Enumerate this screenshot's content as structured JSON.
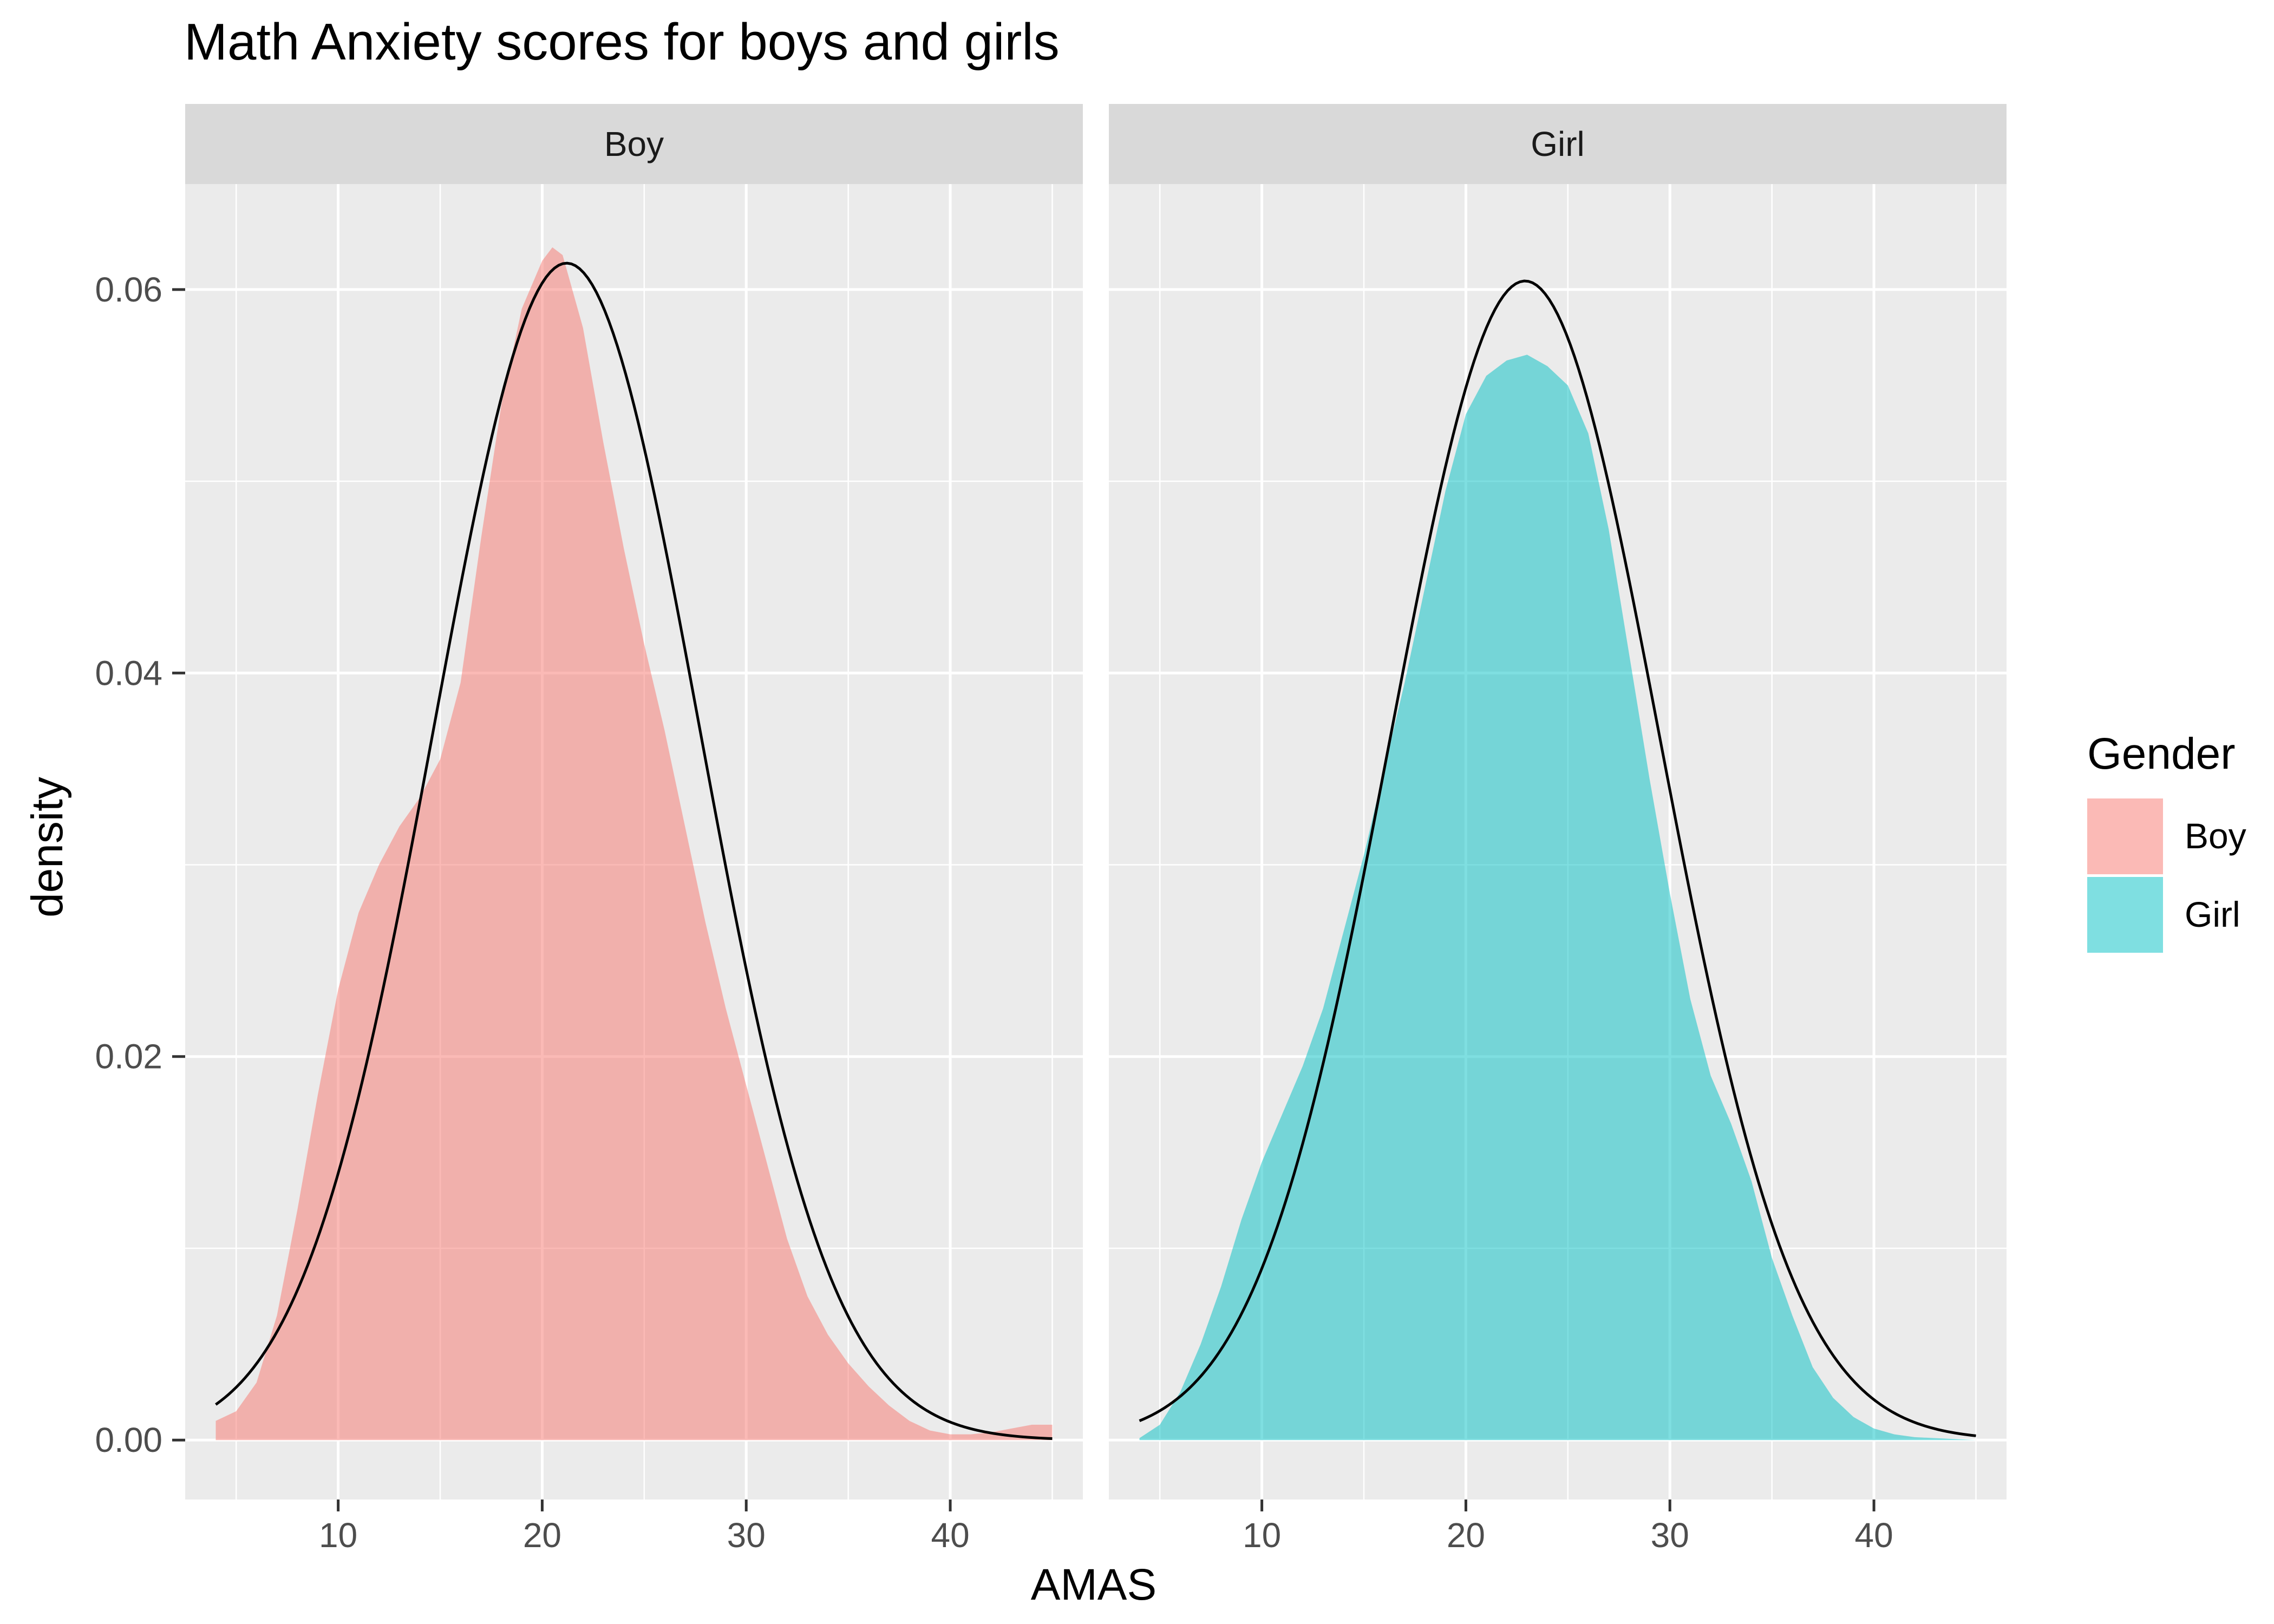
{
  "chart_data": {
    "type": "area",
    "title": "Math Anxiety scores for boys and girls",
    "xlabel": "AMAS",
    "ylabel": "density",
    "xlim": [
      2.5,
      46.5
    ],
    "ylim": [
      -0.0031,
      0.0655
    ],
    "x_ticks": [
      10,
      20,
      30,
      40
    ],
    "y_ticks": [
      0.0,
      0.02,
      0.04,
      0.06
    ],
    "y_tick_labels": [
      "0.00",
      "0.02",
      "0.04",
      "0.06"
    ],
    "grid": true,
    "legend": {
      "title": "Gender",
      "position": "right",
      "entries": [
        "Boy",
        "Girl"
      ]
    },
    "colors": {
      "Boy": "#F8766D",
      "Girl": "#00BFC4",
      "panel_bg": "#EBEBEB",
      "strip_bg": "#D9D9D9",
      "grid": "#FFFFFF",
      "normal_curve": "#000000"
    },
    "fill_alpha": 0.5,
    "panels": [
      {
        "strip": "Boy",
        "series": "Boy",
        "density_x": [
          4,
          5,
          6,
          7,
          8,
          9,
          10,
          11,
          12,
          13,
          14,
          15,
          16,
          17,
          18,
          19,
          20,
          20.5,
          21,
          22,
          23,
          24,
          25,
          26,
          27,
          28,
          29,
          30,
          31,
          32,
          33,
          34,
          35,
          36,
          37,
          38,
          39,
          40,
          41,
          42,
          43,
          44,
          45
        ],
        "density_y": [
          0.001,
          0.0015,
          0.003,
          0.0065,
          0.012,
          0.018,
          0.0235,
          0.0275,
          0.03,
          0.032,
          0.0335,
          0.0355,
          0.0395,
          0.047,
          0.054,
          0.059,
          0.0615,
          0.0622,
          0.0618,
          0.058,
          0.052,
          0.0465,
          0.0415,
          0.037,
          0.032,
          0.027,
          0.0225,
          0.0185,
          0.0145,
          0.0105,
          0.0075,
          0.0055,
          0.004,
          0.0028,
          0.0018,
          0.001,
          0.0005,
          0.0003,
          0.0003,
          0.0004,
          0.0006,
          0.0008,
          0.0008
        ],
        "normal_mean": 21.2,
        "normal_sd": 6.5
      },
      {
        "strip": "Girl",
        "series": "Girl",
        "density_x": [
          4,
          5,
          6,
          7,
          8,
          9,
          10,
          11,
          12,
          13,
          14,
          15,
          16,
          17,
          18,
          19,
          20,
          21,
          22,
          23,
          24,
          25,
          26,
          27,
          28,
          29,
          30,
          31,
          32,
          33,
          34,
          35,
          36,
          37,
          38,
          39,
          40,
          41,
          42,
          43,
          44,
          45
        ],
        "density_y": [
          0.0001,
          0.0008,
          0.0025,
          0.005,
          0.008,
          0.0115,
          0.0145,
          0.017,
          0.0195,
          0.0225,
          0.0265,
          0.0305,
          0.035,
          0.0395,
          0.0445,
          0.0495,
          0.0535,
          0.0555,
          0.0563,
          0.0566,
          0.056,
          0.055,
          0.0525,
          0.0475,
          0.041,
          0.0345,
          0.0285,
          0.023,
          0.019,
          0.0165,
          0.0135,
          0.0095,
          0.0065,
          0.0038,
          0.0022,
          0.0012,
          0.0006,
          0.0003,
          0.00015,
          0.0001,
          5e-05,
          0.0
        ],
        "normal_mean": 22.9,
        "normal_sd": 6.6
      }
    ]
  }
}
